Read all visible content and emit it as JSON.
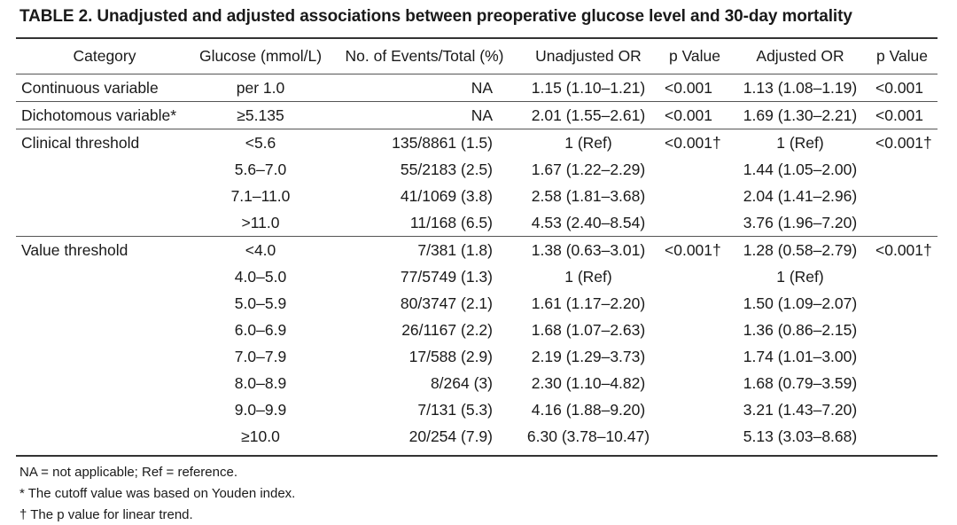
{
  "title": "TABLE 2. Unadjusted and adjusted associations between preoperative glucose level and 30-day mortality",
  "headers": [
    "Category",
    "Glucose (mmol/L)",
    "No. of Events/Total (%)",
    "Unadjusted OR",
    "p Value",
    "Adjusted OR",
    "p Value"
  ],
  "rows": [
    {
      "category": "Continuous variable",
      "glucose": "per 1.0",
      "events": "NA",
      "unadj_or": "1.15 (1.10–1.21)",
      "p1": "<0.001",
      "adj_or": "1.13 (1.08–1.19)",
      "p2": "<0.001"
    },
    {
      "category": "Dichotomous variable*",
      "glucose": "≥5.135",
      "events": "NA",
      "unadj_or": "2.01 (1.55–2.61)",
      "p1": "<0.001",
      "adj_or": "1.69 (1.30–2.21)",
      "p2": "<0.001"
    },
    {
      "category": "Clinical threshold",
      "glucose": "<5.6",
      "events": "135/8861 (1.5)",
      "unadj_or": "1 (Ref)",
      "p1": "<0.001†",
      "adj_or": "1 (Ref)",
      "p2": "<0.001†"
    },
    {
      "category": "",
      "glucose": "5.6–7.0",
      "events": "55/2183 (2.5)",
      "unadj_or": "1.67 (1.22–2.29)",
      "p1": "",
      "adj_or": "1.44 (1.05–2.00)",
      "p2": ""
    },
    {
      "category": "",
      "glucose": "7.1–11.0",
      "events": "41/1069 (3.8)",
      "unadj_or": "2.58 (1.81–3.68)",
      "p1": "",
      "adj_or": "2.04 (1.41–2.96)",
      "p2": ""
    },
    {
      "category": "",
      "glucose": ">11.0",
      "events": "11/168 (6.5)",
      "unadj_or": "4.53 (2.40–8.54)",
      "p1": "",
      "adj_or": "3.76 (1.96–7.20)",
      "p2": ""
    },
    {
      "category": "Value threshold",
      "glucose": "<4.0",
      "events": "7/381 (1.8)",
      "unadj_or": "1.38 (0.63–3.01)",
      "p1": "<0.001†",
      "adj_or": "1.28 (0.58–2.79)",
      "p2": "<0.001†"
    },
    {
      "category": "",
      "glucose": "4.0–5.0",
      "events": "77/5749 (1.3)",
      "unadj_or": "1 (Ref)",
      "p1": "",
      "adj_or": "1 (Ref)",
      "p2": ""
    },
    {
      "category": "",
      "glucose": "5.0–5.9",
      "events": "80/3747 (2.1)",
      "unadj_or": "1.61 (1.17–2.20)",
      "p1": "",
      "adj_or": "1.50 (1.09–2.07)",
      "p2": ""
    },
    {
      "category": "",
      "glucose": "6.0–6.9",
      "events": "26/1167 (2.2)",
      "unadj_or": "1.68 (1.07–2.63)",
      "p1": "",
      "adj_or": "1.36 (0.86–2.15)",
      "p2": ""
    },
    {
      "category": "",
      "glucose": "7.0–7.9",
      "events": "17/588 (2.9)",
      "unadj_or": "2.19 (1.29–3.73)",
      "p1": "",
      "adj_or": "1.74 (1.01–3.00)",
      "p2": ""
    },
    {
      "category": "",
      "glucose": "8.0–8.9",
      "events": "8/264 (3)",
      "unadj_or": "2.30 (1.10–4.82)",
      "p1": "",
      "adj_or": "1.68 (0.79–3.59)",
      "p2": ""
    },
    {
      "category": "",
      "glucose": "9.0–9.9",
      "events": "7/131 (5.3)",
      "unadj_or": "4.16 (1.88–9.20)",
      "p1": "",
      "adj_or": "3.21 (1.43–7.20)",
      "p2": ""
    },
    {
      "category": "",
      "glucose": "≥10.0",
      "events": "20/254 (7.9)",
      "unadj_or": "6.30 (3.78–10.47)",
      "p1": "",
      "adj_or": "5.13 (3.03–8.68)",
      "p2": ""
    }
  ],
  "footnotes": [
    "NA = not applicable; Ref = reference.",
    "* The cutoff value was based on Youden index.",
    "† The p value for linear trend."
  ]
}
